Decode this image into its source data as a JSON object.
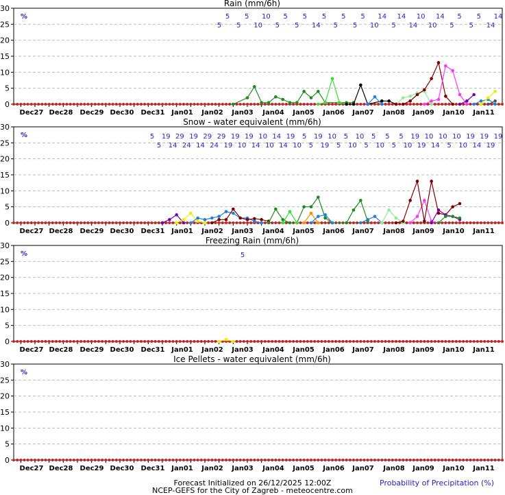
{
  "chart_data": [
    {
      "type": "line",
      "title": "Rain (mm/6h)",
      "x": [
        "Dec27",
        "Dec28",
        "Dec29",
        "Dec30",
        "Dec31",
        "Jan01",
        "Jan02",
        "Jan03",
        "Jan04",
        "Jan05",
        "Jan06",
        "Jan07",
        "Jan08",
        "Jan09",
        "Jan10",
        "Jan11"
      ],
      "ylim": [
        0,
        30
      ],
      "yticks": [
        0,
        5,
        10,
        15,
        20,
        25,
        30
      ],
      "grid": true,
      "percent_symbol": "%",
      "probability_row_top": [
        "5",
        "5",
        "10",
        "5",
        "5",
        "5",
        "5",
        "5",
        "14",
        "14",
        "10",
        "14",
        "5",
        "5",
        "14"
      ],
      "probability_row_bottom": [
        "5",
        "5",
        "10",
        "5",
        "5",
        "14",
        "5",
        "5",
        "10",
        "5",
        "14",
        "10",
        "5",
        "5",
        "14"
      ],
      "series": [
        {
          "color": "#1a8c1a",
          "values": [
            [
              62,
              0
            ],
            [
              66,
              2
            ],
            [
              68,
              5.5
            ],
            [
              70,
              0.5
            ],
            [
              72,
              0.5
            ],
            [
              74,
              2.3
            ],
            [
              76,
              1.5
            ],
            [
              78,
              0.5
            ],
            [
              80,
              0.5
            ],
            [
              82,
              4
            ],
            [
              84,
              2
            ],
            [
              86,
              4
            ],
            [
              88,
              0.5
            ],
            [
              94,
              0.5
            ],
            [
              96,
              0.5
            ]
          ]
        },
        {
          "color": "#33dd33",
          "values": [
            [
              86,
              0
            ],
            [
              88,
              0.5
            ],
            [
              90,
              8
            ],
            [
              92,
              0.5
            ],
            [
              94,
              0
            ]
          ]
        },
        {
          "color": "#000000",
          "values": [
            [
              94,
              0
            ],
            [
              96,
              0
            ],
            [
              98,
              6
            ],
            [
              100,
              0
            ],
            [
              104,
              1
            ],
            [
              106,
              1
            ],
            [
              108,
              0
            ]
          ]
        },
        {
          "color": "#1f7fe0",
          "values": [
            [
              100,
              0
            ],
            [
              102,
              2.3
            ],
            [
              104,
              0
            ]
          ]
        },
        {
          "color": "#90ee90",
          "values": [
            [
              108,
              0
            ],
            [
              110,
              2
            ],
            [
              112,
              2.5
            ],
            [
              114,
              3.5
            ],
            [
              116,
              4
            ],
            [
              118,
              0
            ]
          ]
        },
        {
          "color": "#800000",
          "values": [
            [
              108,
              0
            ],
            [
              110,
              0
            ],
            [
              112,
              1
            ],
            [
              114,
              3
            ],
            [
              116,
              4.5
            ],
            [
              118,
              8
            ],
            [
              120,
              13
            ],
            [
              122,
              2.5
            ],
            [
              124,
              0
            ]
          ]
        },
        {
          "color": "#ff33ff",
          "values": [
            [
              116,
              0
            ],
            [
              118,
              1
            ],
            [
              120,
              1.5
            ],
            [
              122,
              12
            ],
            [
              124,
              10.5
            ],
            [
              126,
              3
            ],
            [
              128,
              0
            ]
          ]
        },
        {
          "color": "#7700aa",
          "values": [
            [
              126,
              0
            ],
            [
              128,
              1
            ],
            [
              130,
              3
            ]
          ]
        },
        {
          "color": "#1f7fe0",
          "values": [
            [
              130,
              0
            ],
            [
              132,
              1
            ],
            [
              134,
              1.5
            ],
            [
              136,
              0
            ]
          ]
        },
        {
          "color": "#eeee00",
          "values": [
            [
              132,
              0
            ],
            [
              134,
              2
            ],
            [
              136,
              4
            ]
          ]
        },
        {
          "color": "#555555",
          "values": [
            [
              134,
              0
            ],
            [
              136,
              1
            ]
          ]
        }
      ]
    },
    {
      "type": "line",
      "title": "Snow - water equivalent (mm/6h)",
      "x": [
        "Dec27",
        "Dec28",
        "Dec29",
        "Dec30",
        "Dec31",
        "Jan01",
        "Jan02",
        "Jan03",
        "Jan04",
        "Jan05",
        "Jan06",
        "Jan07",
        "Jan08",
        "Jan09",
        "Jan10",
        "Jan11"
      ],
      "ylim": [
        0,
        30
      ],
      "yticks": [
        0,
        5,
        10,
        15,
        20,
        25,
        30
      ],
      "grid": true,
      "percent_symbol": "%",
      "probability_row_top": [
        "5",
        "19",
        "29",
        "19",
        "29",
        "29",
        "19",
        "19",
        "10",
        "14",
        "19",
        "5",
        "19",
        "10",
        "5",
        "10",
        "5",
        "5",
        "5",
        "19",
        "10",
        "10",
        "10",
        "19",
        "19",
        "19"
      ],
      "probability_row_bottom": [
        "5",
        "14",
        "24",
        "14",
        "24",
        "19",
        "10",
        "14",
        "10",
        "14",
        "10",
        "5",
        "19",
        "5",
        "10",
        "5",
        "10",
        "5",
        "10",
        "19",
        "14",
        "5",
        "10",
        "14",
        "19"
      ],
      "series": [
        {
          "color": "#7700aa",
          "values": [
            [
              42,
              0
            ],
            [
              44,
              1
            ],
            [
              46,
              2.5
            ],
            [
              48,
              0
            ]
          ]
        },
        {
          "color": "#eeee00",
          "values": [
            [
              46,
              0
            ],
            [
              48,
              1
            ],
            [
              50,
              3
            ],
            [
              52,
              0.5
            ],
            [
              54,
              0
            ]
          ]
        },
        {
          "color": "#1f7fe0",
          "values": [
            [
              50,
              0
            ],
            [
              52,
              1.5
            ],
            [
              54,
              1
            ],
            [
              56,
              1.5
            ],
            [
              58,
              2
            ],
            [
              60,
              3.5
            ],
            [
              62,
              3
            ],
            [
              64,
              1.5
            ],
            [
              66,
              1.5
            ],
            [
              68,
              0.5
            ],
            [
              70,
              0
            ]
          ]
        },
        {
          "color": "#800000",
          "values": [
            [
              56,
              0
            ],
            [
              58,
              1
            ],
            [
              60,
              1
            ],
            [
              62,
              4.3
            ],
            [
              64,
              1.5
            ],
            [
              66,
              1
            ],
            [
              68,
              1.3
            ],
            [
              70,
              1
            ],
            [
              72,
              0.5
            ]
          ]
        },
        {
          "color": "#1a8c1a",
          "values": [
            [
              72,
              0
            ],
            [
              74,
              4.3
            ],
            [
              76,
              1
            ],
            [
              78,
              0
            ],
            [
              80,
              0
            ],
            [
              82,
              5
            ],
            [
              84,
              5
            ],
            [
              86,
              8
            ],
            [
              88,
              1.5
            ],
            [
              90,
              0
            ],
            [
              94,
              0
            ],
            [
              96,
              4
            ],
            [
              98,
              7
            ],
            [
              100,
              0.5
            ]
          ]
        },
        {
          "color": "#33dd33",
          "values": [
            [
              76,
              0
            ],
            [
              78,
              3.5
            ],
            [
              80,
              0
            ]
          ]
        },
        {
          "color": "#ff8c00",
          "values": [
            [
              82,
              0
            ],
            [
              84,
              3
            ],
            [
              86,
              0
            ]
          ]
        },
        {
          "color": "#1f7fe0",
          "values": [
            [
              84,
              0
            ],
            [
              86,
              2
            ],
            [
              88,
              2.5
            ],
            [
              90,
              0
            ]
          ]
        },
        {
          "color": "#1f7fe0",
          "values": [
            [
              98,
              0
            ],
            [
              100,
              1
            ],
            [
              102,
              2
            ],
            [
              104,
              0
            ]
          ]
        },
        {
          "color": "#90ee90",
          "values": [
            [
              104,
              0
            ],
            [
              106,
              4
            ],
            [
              108,
              1.5
            ],
            [
              110,
              0
            ]
          ]
        },
        {
          "color": "#ff33ff",
          "values": [
            [
              112,
              0
            ],
            [
              114,
              2
            ],
            [
              116,
              7
            ],
            [
              118,
              0.5
            ],
            [
              120,
              0
            ]
          ]
        },
        {
          "color": "#800000",
          "values": [
            [
              108,
              0
            ],
            [
              110,
              0.5
            ],
            [
              112,
              7
            ],
            [
              114,
              13
            ],
            [
              116,
              0.5
            ],
            [
              118,
              13
            ],
            [
              120,
              3
            ],
            [
              122,
              2.5
            ],
            [
              124,
              5
            ],
            [
              126,
              6
            ]
          ]
        },
        {
          "color": "#7700aa",
          "values": [
            [
              118,
              0
            ],
            [
              120,
              4
            ],
            [
              122,
              2.5
            ],
            [
              124,
              2
            ],
            [
              126,
              1
            ]
          ]
        },
        {
          "color": "#1a8c1a",
          "values": [
            [
              120,
              0
            ],
            [
              122,
              2
            ],
            [
              124,
              2
            ],
            [
              126,
              1.5
            ]
          ]
        }
      ]
    },
    {
      "type": "line",
      "title": "Freezing Rain (mm/6h)",
      "x": [
        "Dec27",
        "Dec28",
        "Dec29",
        "Dec30",
        "Dec31",
        "Jan01",
        "Jan02",
        "Jan03",
        "Jan04",
        "Jan05",
        "Jan06",
        "Jan07",
        "Jan08",
        "Jan09",
        "Jan10",
        "Jan11"
      ],
      "ylim": [
        0,
        30
      ],
      "yticks": [
        0,
        5,
        10,
        15,
        20,
        25,
        30
      ],
      "grid": true,
      "percent_symbol": "%",
      "probability_row_top": [
        "5"
      ],
      "probability_row_bottom": [],
      "series": [
        {
          "color": "#eeee00",
          "values": [
            [
              58,
              0
            ],
            [
              60,
              0.6
            ],
            [
              62,
              0
            ]
          ]
        }
      ]
    },
    {
      "type": "line",
      "title": "Ice Pellets - water equivalent (mm/6h)",
      "x": [
        "Dec27",
        "Dec28",
        "Dec29",
        "Dec30",
        "Dec31",
        "Jan01",
        "Jan02",
        "Jan03",
        "Jan04",
        "Jan05",
        "Jan06",
        "Jan07",
        "Jan08",
        "Jan09",
        "Jan10",
        "Jan11"
      ],
      "ylim": [
        0,
        30
      ],
      "yticks": [
        0,
        5,
        10,
        15,
        20,
        25,
        30
      ],
      "grid": true,
      "percent_symbol": "%",
      "probability_row_top": [],
      "probability_row_bottom": [],
      "series": []
    }
  ],
  "footer": {
    "line1": "Forecast Initialized on 26/12/2025 12:00Z",
    "line2": "NCEP-GEFS for the City of Zagreb - meteocentre.com",
    "probability_legend": "Probability of Precipitation (%)"
  }
}
